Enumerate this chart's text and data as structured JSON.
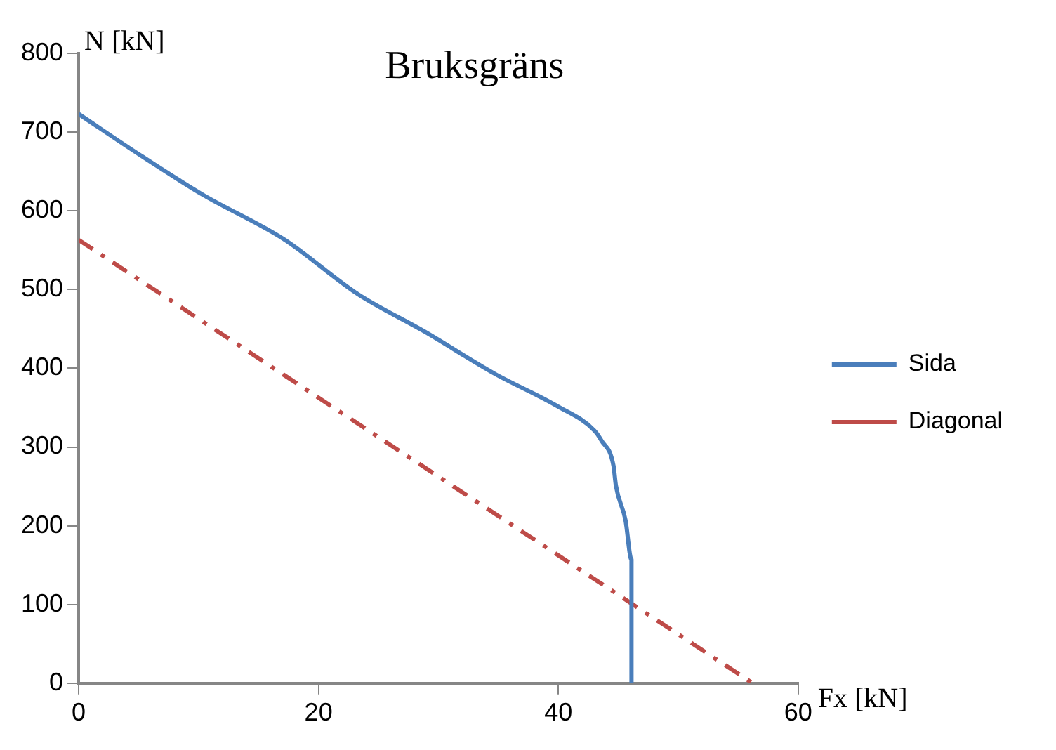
{
  "chart_data": {
    "type": "line",
    "title": "Bruksgräns",
    "xlabel": "Fx [kN]",
    "ylabel": "N [kN]",
    "xlim": [
      0,
      60
    ],
    "xticks": [
      0,
      20,
      40,
      60
    ],
    "ylim": [
      0,
      800
    ],
    "yticks": [
      0,
      100,
      200,
      300,
      400,
      500,
      600,
      700,
      800
    ],
    "grid": false,
    "legend": "right",
    "marker": "none",
    "series": [
      {
        "name": "Sida",
        "color": "#4a7ebb",
        "line_style": "solid",
        "x": [
          0,
          5.3,
          10.4,
          17.1,
          23.3,
          28.8,
          34.7,
          39.9,
          43.0,
          43.6,
          44.6,
          44.8,
          45.6,
          46.1,
          46.1,
          46.1
        ],
        "values": [
          723,
          669,
          620,
          564,
          494,
          447,
          393,
          352,
          321,
          308,
          276,
          251,
          207,
          157,
          106,
          0
        ]
      },
      {
        "name": "Diagonal",
        "color": "#be4b48",
        "line_style": "dashdot",
        "x": [
          0,
          56.2
        ],
        "values": [
          563,
          0
        ]
      }
    ]
  }
}
